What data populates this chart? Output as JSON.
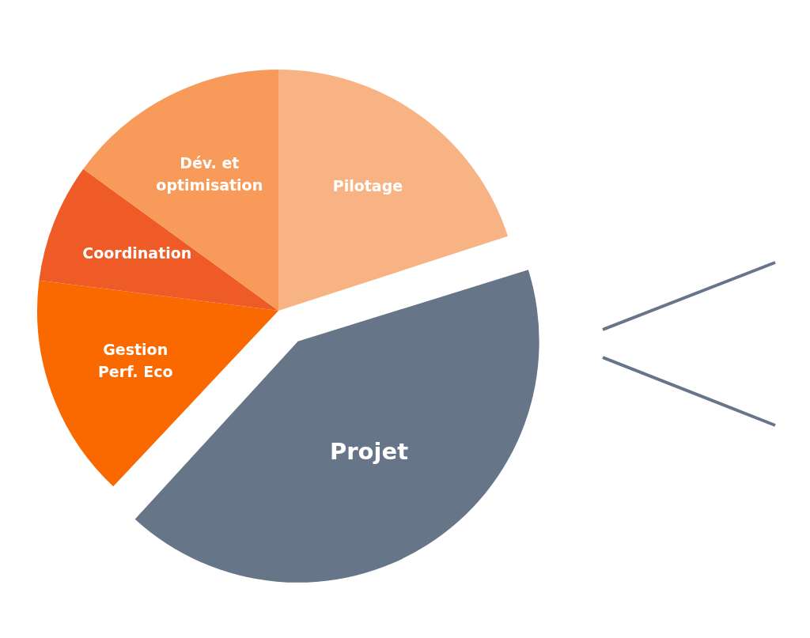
{
  "chart_data": {
    "type": "pie",
    "categories": [
      "Pilotage",
      "Projet",
      "Gestion Perf. Eco",
      "Coordination",
      "Dév. et optimisation"
    ],
    "values": [
      20,
      42,
      15,
      8,
      15
    ],
    "colors": [
      "#f8b384",
      "#667587",
      "#fa6800",
      "#ef5b27",
      "#f79a5a"
    ]
  }
}
